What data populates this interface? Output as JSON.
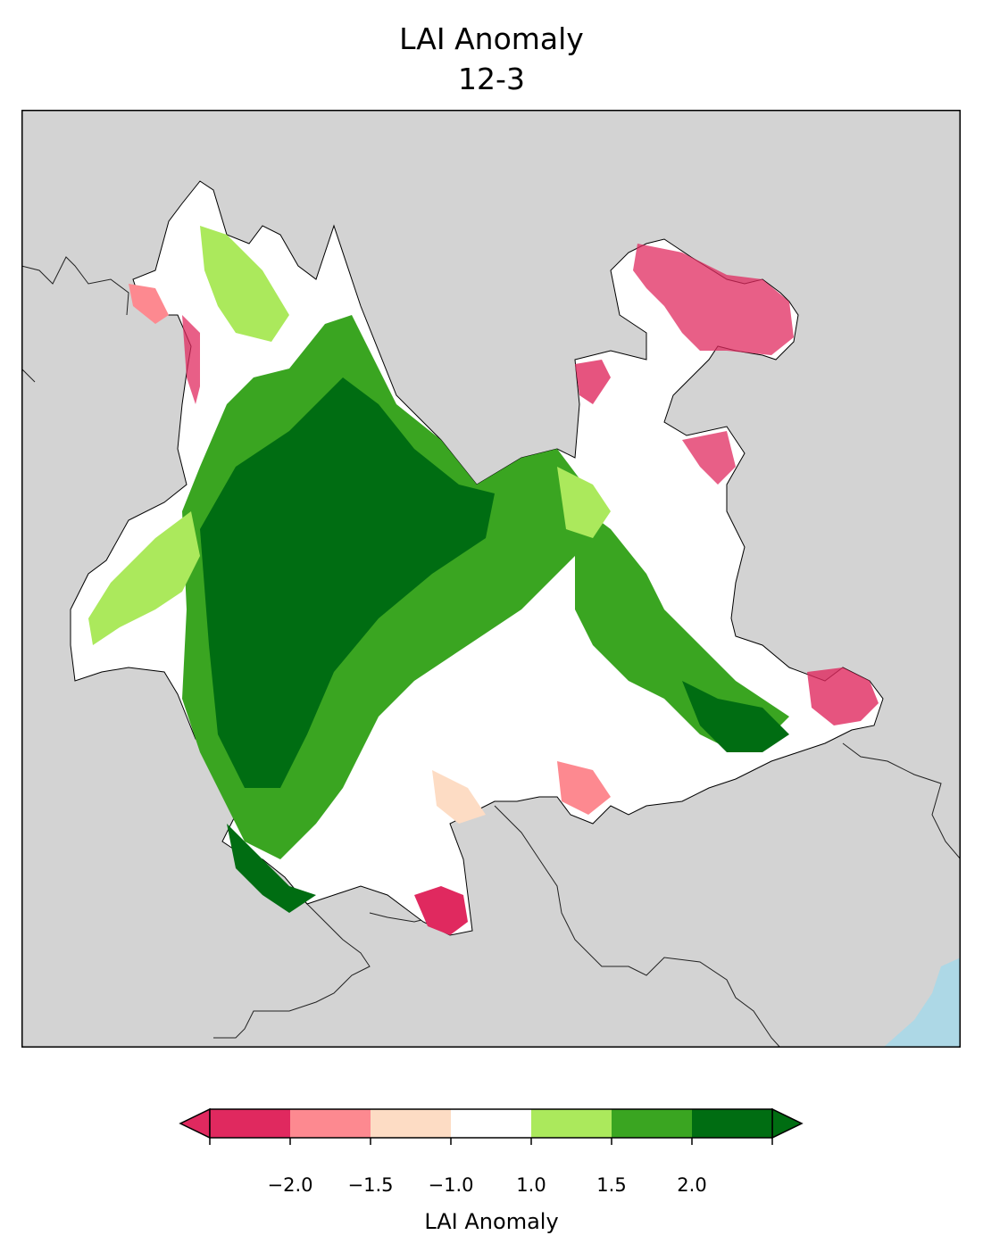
{
  "title": "LAI Anomaly",
  "subtitle": "12-3",
  "map": {
    "background_color": "#d3d3d3",
    "ocean_color": "#add8e6",
    "border_color": "#000000",
    "region": "Yunnan province LAI anomaly raster"
  },
  "colorbar": {
    "label": "LAI Anomaly",
    "extend": "both",
    "colors": [
      "#e0295f",
      "#fd8990",
      "#fddcc4",
      "#ffffff",
      "#abe95c",
      "#3aa521",
      "#006d12"
    ],
    "tick_labels": [
      "−2.0",
      "−1.5",
      "−1.0",
      "1.0",
      "1.5",
      "2.0"
    ]
  }
}
